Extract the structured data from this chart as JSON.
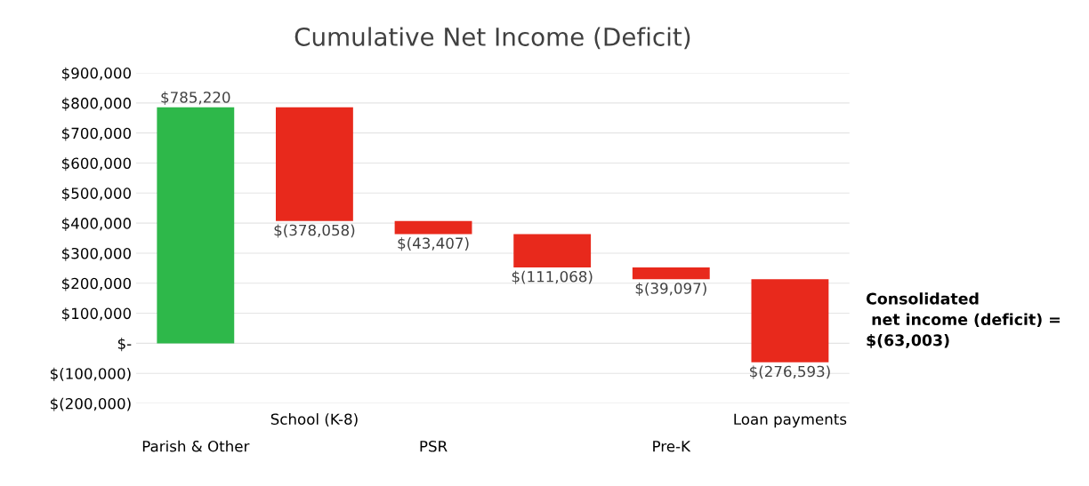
{
  "chart_data": {
    "type": "bar",
    "title": "Cumulative Net Income (Deficit)",
    "categories": [
      "Parish & Other",
      "School (K-8)",
      "PSR",
      null,
      "Pre-K",
      "Loan payments"
    ],
    "values": [
      785220,
      -378058,
      -43407,
      -111068,
      -39097,
      -276593
    ],
    "base": [
      0,
      785220,
      407162,
      363755,
      252687,
      213590
    ],
    "colors": [
      "#2eb84a",
      "#e8291c",
      "#e8291c",
      "#e8291c",
      "#e8291c",
      "#e8291c"
    ],
    "value_labels": [
      "$785,220",
      "$(378,058)",
      "$(43,407)",
      "$(111,068)",
      "$(39,097)",
      "$(276,593)"
    ],
    "ylim": [
      -200000,
      900000
    ],
    "yticks": [
      {
        "value": -200000,
        "label": "$(200,000)"
      },
      {
        "value": -100000,
        "label": "$(100,000)"
      },
      {
        "value": 0,
        "label": "$-"
      },
      {
        "value": 100000,
        "label": "$100,000"
      },
      {
        "value": 200000,
        "label": "$200,000"
      },
      {
        "value": 300000,
        "label": "$300,000"
      },
      {
        "value": 400000,
        "label": "$400,000"
      },
      {
        "value": 500000,
        "label": "$500,000"
      },
      {
        "value": 600000,
        "label": "$600,000"
      },
      {
        "value": 700000,
        "label": "$700,000"
      },
      {
        "value": 800000,
        "label": "$800,000"
      },
      {
        "value": 900000,
        "label": "$900,000"
      }
    ],
    "grid": "y",
    "annotations": [
      "Consolidated\n net income (deficit) =\n$(63,003)"
    ]
  }
}
